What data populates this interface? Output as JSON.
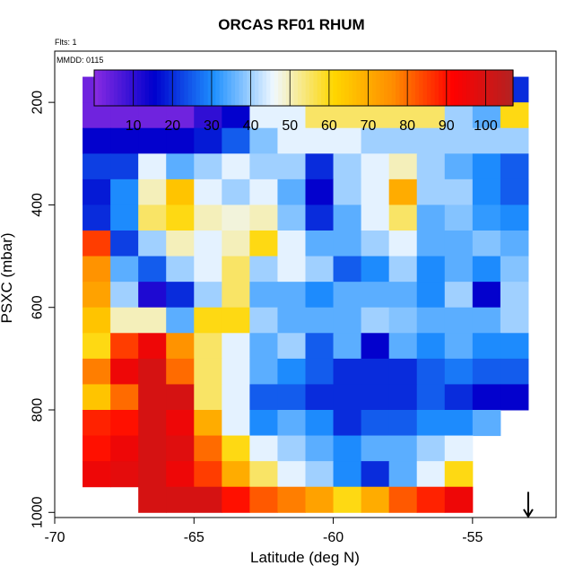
{
  "header": {
    "title": "ORCAS RF01 RHUM",
    "flights_label": "Flts: 1",
    "date_label": "MMDD: 0115"
  },
  "colorbar": {
    "ticks": [
      10,
      20,
      30,
      40,
      50,
      60,
      70,
      80,
      90,
      100
    ],
    "range": [
      0,
      107
    ],
    "stops": [
      "#8a2be2",
      "#0000cd",
      "#1e90ff",
      "#f0f8ff",
      "#ffd700",
      "#ff8c00",
      "#ff0000",
      "#b22222"
    ]
  },
  "chart_data": {
    "type": "heatmap",
    "title": "ORCAS RF01 RHUM",
    "xlabel": "Latitude (deg N)",
    "ylabel": "PSXC (mbar)",
    "xlim": [
      -70,
      -52
    ],
    "ylim": [
      1010,
      100
    ],
    "x_ticks": [
      -70,
      -65,
      -60,
      -55
    ],
    "y_ticks": [
      200,
      400,
      600,
      800,
      1000
    ],
    "grid": false,
    "pressure_levels": [
      175,
      225,
      275,
      325,
      375,
      425,
      475,
      525,
      575,
      625,
      675,
      725,
      775,
      825,
      875,
      925,
      975
    ],
    "latitudes": [
      -68.5,
      -67.5,
      -66.5,
      -65.5,
      -64.5,
      -63.5,
      -62.5,
      -61.5,
      -60.5,
      -59.5,
      -58.5,
      -57.5,
      -56.5,
      -55.5,
      -54.5,
      -53.5
    ],
    "z_label": "RHUM",
    "z_values": [
      [
        3,
        3,
        3,
        3,
        3,
        5,
        18,
        30,
        20,
        35,
        45,
        45,
        40,
        45,
        40,
        20
      ],
      [
        3,
        3,
        3,
        3,
        10,
        15,
        45,
        45,
        55,
        55,
        55,
        55,
        55,
        40,
        35,
        60
      ],
      [
        15,
        15,
        15,
        15,
        18,
        25,
        38,
        45,
        45,
        45,
        40,
        40,
        40,
        40,
        40,
        40
      ],
      [
        22,
        22,
        45,
        35,
        40,
        45,
        40,
        40,
        20,
        40,
        45,
        50,
        40,
        35,
        30,
        25
      ],
      [
        18,
        30,
        50,
        65,
        45,
        40,
        45,
        35,
        15,
        40,
        45,
        70,
        40,
        40,
        30,
        25
      ],
      [
        20,
        30,
        55,
        60,
        50,
        48,
        50,
        38,
        20,
        35,
        45,
        55,
        35,
        38,
        32,
        30
      ],
      [
        85,
        22,
        40,
        50,
        45,
        50,
        60,
        45,
        35,
        35,
        40,
        45,
        35,
        35,
        38,
        35
      ],
      [
        75,
        35,
        25,
        40,
        45,
        55,
        40,
        45,
        40,
        25,
        30,
        40,
        30,
        35,
        30,
        38
      ],
      [
        72,
        40,
        12,
        20,
        40,
        55,
        35,
        35,
        30,
        35,
        35,
        35,
        30,
        40,
        15,
        40
      ],
      [
        65,
        50,
        50,
        35,
        60,
        60,
        40,
        35,
        35,
        35,
        40,
        38,
        35,
        35,
        35,
        40
      ],
      [
        60,
        85,
        95,
        75,
        55,
        45,
        35,
        40,
        25,
        35,
        15,
        35,
        30,
        35,
        30,
        30
      ],
      [
        78,
        95,
        100,
        80,
        55,
        45,
        35,
        30,
        25,
        20,
        20,
        20,
        25,
        28,
        25,
        25
      ],
      [
        65,
        80,
        100,
        100,
        55,
        45,
        25,
        25,
        20,
        20,
        20,
        20,
        25,
        20,
        15,
        15
      ],
      [
        88,
        90,
        100,
        95,
        70,
        45,
        30,
        35,
        30,
        20,
        25,
        25,
        30,
        30,
        35,
        null
      ],
      [
        90,
        95,
        100,
        98,
        80,
        60,
        45,
        40,
        35,
        30,
        35,
        35,
        40,
        45,
        null,
        null
      ],
      [
        95,
        97,
        100,
        95,
        85,
        70,
        55,
        45,
        40,
        30,
        20,
        35,
        45,
        60,
        null,
        null
      ],
      [
        null,
        null,
        100,
        100,
        100,
        90,
        82,
        78,
        72,
        60,
        70,
        82,
        88,
        95,
        null,
        null
      ]
    ]
  }
}
